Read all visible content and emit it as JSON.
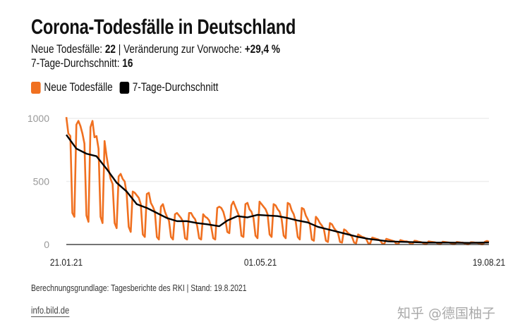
{
  "header": {
    "title": "Corona-Todesfälle in Deutschland",
    "new_deaths_label": "Neue Todesfälle: ",
    "new_deaths_value": "22",
    "separator": " | ",
    "change_label": "Veränderung zur Vorwoche: ",
    "change_value": "+29,4 %",
    "avg_label": "7-Tage-Durchschnitt: ",
    "avg_value": "16"
  },
  "colors": {
    "daily": "#f07020",
    "avg": "#000000",
    "grid": "#eeeeee",
    "axis": "#222222"
  },
  "footer": {
    "source": "Berechnungsgrundlage: Tagesberichte des RKI | Stand: 19.8.2021",
    "link": "info.bild.de",
    "watermark": "知乎 @德国柚子"
  },
  "chart_data": {
    "type": "line",
    "title": "Corona-Todesfälle in Deutschland",
    "xlabel": "",
    "ylabel": "",
    "x_start": "21.01.21",
    "x_end": "19.08.21",
    "x_ticks": [
      {
        "day": 0,
        "label": "21.01.21"
      },
      {
        "day": 100,
        "label": "01.05.21"
      },
      {
        "day": 210,
        "label": "19.08.21"
      }
    ],
    "y_ticks": [
      {
        "value": 0,
        "label": "0"
      },
      {
        "value": 500,
        "label": "500"
      },
      {
        "value": 1000,
        "label": "1000"
      }
    ],
    "ylim": [
      0,
      1000
    ],
    "xlim_days": [
      0,
      210
    ],
    "grid": true,
    "legend": {
      "placement": "top-left",
      "entries": [
        "Neue Todesfälle",
        "7-Tage-Durchschnitt"
      ]
    },
    "series": [
      {
        "name": "Neue Todesfälle",
        "values": [
          1010,
          880,
          860,
          250,
          220,
          950,
          980,
          940,
          880,
          800,
          230,
          180,
          930,
          980,
          850,
          860,
          760,
          220,
          170,
          820,
          700,
          600,
          520,
          480,
          170,
          130,
          540,
          560,
          520,
          500,
          400,
          140,
          100,
          420,
          410,
          390,
          370,
          320,
          80,
          60,
          400,
          410,
          330,
          300,
          260,
          60,
          40,
          300,
          320,
          260,
          220,
          190,
          60,
          40,
          240,
          250,
          230,
          210,
          180,
          50,
          40,
          250,
          250,
          220,
          200,
          150,
          50,
          40,
          240,
          220,
          210,
          190,
          140,
          50,
          40,
          290,
          300,
          290,
          260,
          200,
          100,
          90,
          310,
          340,
          300,
          260,
          220,
          70,
          60,
          320,
          330,
          280,
          260,
          210,
          70,
          50,
          340,
          320,
          300,
          280,
          240,
          80,
          60,
          320,
          310,
          280,
          260,
          200,
          70,
          50,
          330,
          320,
          270,
          240,
          180,
          60,
          40,
          290,
          280,
          230,
          200,
          160,
          40,
          30,
          220,
          200,
          170,
          150,
          120,
          30,
          20,
          170,
          160,
          130,
          110,
          90,
          20,
          15,
          120,
          110,
          90,
          80,
          60,
          15,
          10,
          80,
          70,
          60,
          55,
          45,
          10,
          8,
          55,
          50,
          45,
          40,
          30,
          8,
          5,
          45,
          40,
          35,
          30,
          25,
          5,
          5,
          35,
          30,
          25,
          25,
          20,
          5,
          4,
          30,
          28,
          22,
          20,
          15,
          3,
          3,
          25,
          22,
          20,
          18,
          14,
          3,
          3,
          22,
          20,
          18,
          16,
          12,
          3,
          3,
          20,
          18,
          16,
          15,
          10,
          2,
          2,
          18,
          17,
          15,
          14,
          10,
          2,
          2,
          22,
          28,
          22
        ]
      },
      {
        "name": "7-Tage-Durchschnitt",
        "days": [
          0,
          5,
          10,
          15,
          20,
          25,
          30,
          35,
          40,
          45,
          50,
          55,
          60,
          65,
          70,
          76,
          80,
          85,
          90,
          95,
          100,
          105,
          110,
          115,
          120,
          125,
          130,
          135,
          140,
          145,
          150,
          155,
          160,
          165,
          170,
          180,
          190,
          200,
          210
        ],
        "values": [
          870,
          760,
          720,
          700,
          600,
          490,
          420,
          320,
          290,
          250,
          210,
          185,
          185,
          170,
          160,
          145,
          190,
          225,
          215,
          235,
          230,
          225,
          210,
          190,
          175,
          140,
          120,
          100,
          80,
          60,
          45,
          35,
          25,
          22,
          20,
          15,
          15,
          13,
          16
        ]
      }
    ]
  }
}
